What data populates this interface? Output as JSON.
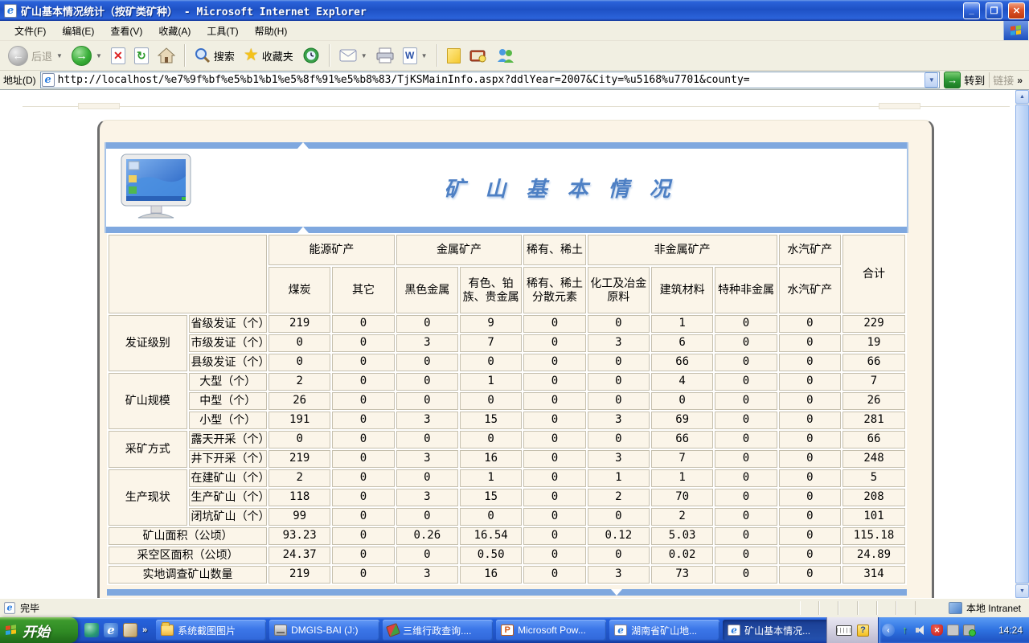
{
  "window": {
    "title": "矿山基本情况统计（按矿类矿种） - Microsoft Internet Explorer"
  },
  "menu": {
    "items": [
      "文件(F)",
      "编辑(E)",
      "查看(V)",
      "收藏(A)",
      "工具(T)",
      "帮助(H)"
    ]
  },
  "toolbar": {
    "back": "后退",
    "search": "搜索",
    "favorites": "收藏夹"
  },
  "address": {
    "label": "地址(D)",
    "url": "http://localhost/%e7%9f%bf%e5%b1%b1%e5%8f%91%e5%b8%83/TjKSMainInfo.aspx?ddlYear=2007&City=%u5168%u7701&county=",
    "go": "转到",
    "links": "链接",
    "links_chevron": "»"
  },
  "page": {
    "title": "矿 山 基 本 情 况"
  },
  "table": {
    "col_groups": [
      {
        "label": "能源矿产",
        "cols": [
          "煤炭",
          "其它"
        ]
      },
      {
        "label": "金属矿产",
        "cols": [
          "黑色金属",
          "有色、铂族、贵金属"
        ]
      },
      {
        "label": "稀有、稀土",
        "cols": [
          "稀有、稀土分散元素"
        ]
      },
      {
        "label": "非金属矿产",
        "cols": [
          "化工及冶金原料",
          "建筑材料",
          "特种非金属"
        ]
      },
      {
        "label": "水汽矿产",
        "cols": [
          "水汽矿产"
        ]
      },
      {
        "label": "合计",
        "cols": []
      }
    ],
    "row_groups": [
      {
        "group": "发证级别",
        "rows": [
          {
            "label": "省级发证（个）",
            "values": [
              "219",
              "0",
              "0",
              "9",
              "0",
              "0",
              "1",
              "0",
              "0",
              "229"
            ]
          },
          {
            "label": "市级发证（个）",
            "values": [
              "0",
              "0",
              "3",
              "7",
              "0",
              "3",
              "6",
              "0",
              "0",
              "19"
            ]
          },
          {
            "label": "县级发证（个）",
            "values": [
              "0",
              "0",
              "0",
              "0",
              "0",
              "0",
              "66",
              "0",
              "0",
              "66"
            ]
          }
        ]
      },
      {
        "group": "矿山规模",
        "rows": [
          {
            "label": "大型（个）",
            "values": [
              "2",
              "0",
              "0",
              "1",
              "0",
              "0",
              "4",
              "0",
              "0",
              "7"
            ]
          },
          {
            "label": "中型（个）",
            "values": [
              "26",
              "0",
              "0",
              "0",
              "0",
              "0",
              "0",
              "0",
              "0",
              "26"
            ]
          },
          {
            "label": "小型（个）",
            "values": [
              "191",
              "0",
              "3",
              "15",
              "0",
              "3",
              "69",
              "0",
              "0",
              "281"
            ]
          }
        ]
      },
      {
        "group": "采矿方式",
        "rows": [
          {
            "label": "露天开采（个）",
            "values": [
              "0",
              "0",
              "0",
              "0",
              "0",
              "0",
              "66",
              "0",
              "0",
              "66"
            ]
          },
          {
            "label": "井下开采（个）",
            "values": [
              "219",
              "0",
              "3",
              "16",
              "0",
              "3",
              "7",
              "0",
              "0",
              "248"
            ]
          }
        ]
      },
      {
        "group": "生产现状",
        "rows": [
          {
            "label": "在建矿山（个）",
            "values": [
              "2",
              "0",
              "0",
              "1",
              "0",
              "1",
              "1",
              "0",
              "0",
              "5"
            ]
          },
          {
            "label": "生产矿山（个）",
            "values": [
              "118",
              "0",
              "3",
              "15",
              "0",
              "2",
              "70",
              "0",
              "0",
              "208"
            ]
          },
          {
            "label": "闭坑矿山（个）",
            "values": [
              "99",
              "0",
              "0",
              "0",
              "0",
              "0",
              "2",
              "0",
              "0",
              "101"
            ]
          }
        ]
      },
      {
        "group": null,
        "rows": [
          {
            "label": "矿山面积（公顷）",
            "values": [
              "93.23",
              "0",
              "0.26",
              "16.54",
              "0",
              "0.12",
              "5.03",
              "0",
              "0",
              "115.18"
            ]
          },
          {
            "label": "采空区面积（公顷）",
            "values": [
              "24.37",
              "0",
              "0",
              "0.50",
              "0",
              "0",
              "0.02",
              "0",
              "0",
              "24.89"
            ]
          },
          {
            "label": "实地调查矿山数量",
            "values": [
              "219",
              "0",
              "3",
              "16",
              "0",
              "3",
              "73",
              "0",
              "0",
              "314"
            ]
          }
        ]
      }
    ]
  },
  "statusbar": {
    "left": "完毕",
    "right": "本地 Intranet"
  },
  "taskbar": {
    "start": "开始",
    "buttons": [
      {
        "label": "系统截图图片",
        "icon": "folder",
        "active": false
      },
      {
        "label": "DMGIS-BAI (J:)",
        "icon": "drive",
        "active": false
      },
      {
        "label": "三维行政查询....",
        "icon": "pencil",
        "active": false
      },
      {
        "label": "Microsoft Pow...",
        "icon": "ppt",
        "active": false
      },
      {
        "label": "湖南省矿山地...",
        "icon": "ie",
        "active": false
      },
      {
        "label": "矿山基本情况...",
        "icon": "ie",
        "active": true
      }
    ],
    "clock": "14:24"
  },
  "colors": {
    "accent_blue": "#7FA8DF",
    "cream_panel": "#FBF4E7",
    "cell_bg": "#FBF5E9",
    "cell_border": "#C6C0AE",
    "title_blue": "#4E80C4"
  }
}
